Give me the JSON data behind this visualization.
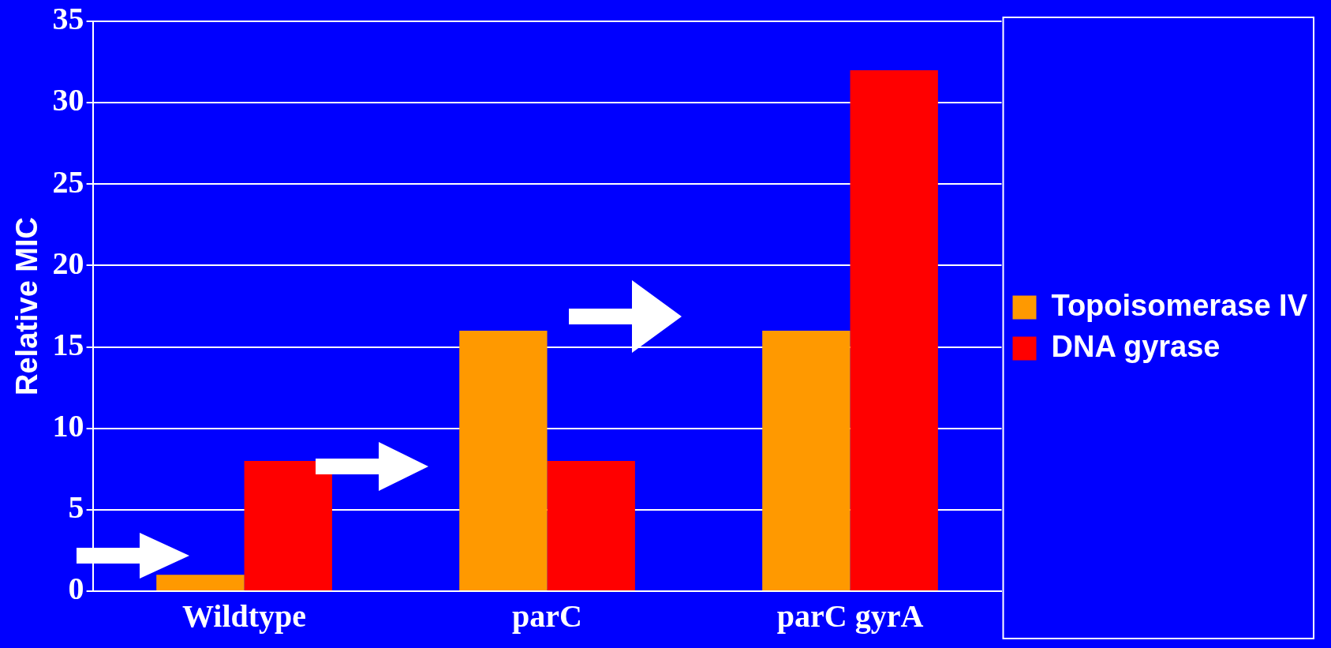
{
  "chart_data": {
    "type": "bar",
    "ylabel": "Relative MIC",
    "categories": [
      "Wildtype",
      "parC",
      "parC gyrA"
    ],
    "series": [
      {
        "name": "Topoisomerase IV",
        "color": "#ff9900",
        "values": [
          1,
          16,
          16
        ]
      },
      {
        "name": "DNA gyrase",
        "color": "#ff0000",
        "values": [
          8,
          8,
          32
        ]
      }
    ],
    "ylim": [
      0,
      35
    ],
    "yticks": [
      0,
      5,
      10,
      15,
      20,
      25,
      30,
      35
    ],
    "grid": "y",
    "legend": "right"
  }
}
